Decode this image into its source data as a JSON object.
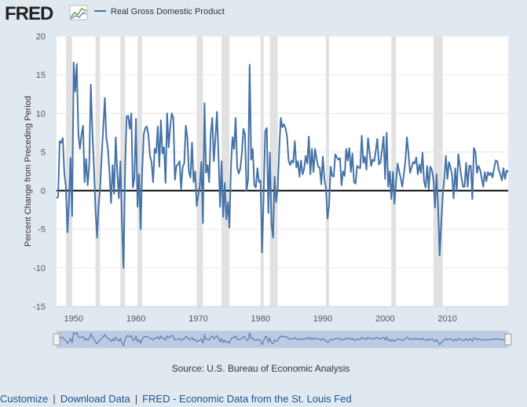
{
  "header": {
    "logo": "FRED"
  },
  "chart_data": {
    "type": "line",
    "series": [
      {
        "name": "Real Gross Domestic Product",
        "color": "#4572a7",
        "values": [
          -1.0,
          -0.8,
          6.4,
          6.2,
          6.8,
          2.3,
          0.5,
          -5.4,
          -1.4,
          4.2,
          -3.3,
          16.6,
          12.8,
          16.4,
          7.4,
          5.4,
          7.2,
          8.4,
          1.1,
          4.1,
          0.7,
          3.3,
          13.7,
          7.7,
          3.1,
          -2.4,
          -6.1,
          -1.9,
          0.4,
          4.6,
          8.1,
          12.0,
          6.8,
          5.4,
          2.3,
          -1.6,
          3.3,
          -0.4,
          6.9,
          2.4,
          -1.0,
          3.8,
          -4.2,
          -10.0,
          2.6,
          9.6,
          9.7,
          8.0,
          10.0,
          0.4,
          1.6,
          9.3,
          -2.1,
          2.1,
          -5.0,
          2.6,
          7.3,
          8.1,
          8.3,
          7.2,
          4.5,
          3.7,
          1.1,
          5.4,
          4.9,
          8.3,
          3.1,
          9.1,
          4.8,
          5.6,
          1.0,
          10.0,
          5.6,
          8.3,
          10.0,
          9.4,
          1.4,
          3.2,
          3.4,
          3.8,
          0.2,
          3.1,
          3.5,
          8.4,
          6.9,
          2.4,
          1.7,
          6.2,
          1.1,
          2.5,
          -2.0,
          -0.6,
          0.6,
          3.7,
          -4.2,
          11.3,
          2.3,
          3.3,
          1.1,
          7.4,
          9.4,
          3.8,
          6.8,
          10.2,
          4.5,
          -2.1,
          3.8,
          -3.4,
          1.0,
          -3.7,
          -1.5,
          -4.8,
          3.1,
          6.9,
          5.4,
          9.4,
          3.0,
          2.2,
          2.9,
          4.8,
          8.0,
          7.3,
          0.0,
          1.4,
          16.3,
          4.0,
          5.4,
          0.7,
          0.4,
          2.9,
          1.1,
          1.3,
          -8.0,
          -0.5,
          7.7,
          8.1,
          -2.9,
          4.9,
          -4.3,
          -6.1,
          1.8,
          -1.5,
          0.2,
          5.4,
          9.4,
          8.2,
          8.6,
          8.1,
          7.1,
          3.9,
          3.3,
          3.9,
          3.6,
          6.4,
          3.0,
          3.8,
          1.8,
          3.9,
          2.1,
          2.8,
          4.5,
          3.5,
          7.0,
          2.1,
          5.4,
          2.4,
          5.4,
          4.1,
          3.1,
          3.0,
          0.8,
          4.4,
          1.5,
          0.3,
          -3.6,
          -1.9,
          3.1,
          1.9,
          1.8,
          4.7,
          4.3,
          4.0,
          4.2,
          0.7,
          2.5,
          1.9,
          5.4,
          3.9,
          5.5,
          2.4,
          4.8,
          1.1,
          0.9,
          3.2,
          3.0,
          2.9,
          7.1,
          3.6,
          4.4,
          2.7,
          6.8,
          5.1,
          3.2,
          4.0,
          3.8,
          5.2,
          6.7,
          3.4,
          3.6,
          5.3,
          7.0,
          1.5,
          7.5,
          0.5,
          2.5,
          -1.1,
          2.4,
          -1.7,
          1.1,
          3.5,
          2.5,
          1.6,
          0.5,
          2.1,
          3.8,
          6.9,
          4.8,
          2.3,
          3.0,
          3.7,
          3.5,
          4.3,
          2.1,
          3.4,
          2.3,
          4.9,
          1.2,
          0.4,
          3.2,
          0.2,
          3.1,
          2.7,
          1.4,
          -2.2,
          2.1,
          -2.1,
          -8.4,
          -4.4,
          -0.6,
          1.5,
          4.5,
          1.5,
          3.7,
          3.0,
          2.0,
          -1.0,
          2.9,
          -0.1,
          4.7,
          3.2,
          1.7,
          0.5,
          0.5,
          3.6,
          0.5,
          3.2,
          3.2,
          -1.1,
          5.5,
          5.0,
          2.3,
          3.2,
          2.7,
          1.6,
          0.5,
          2.4,
          1.2,
          2.4,
          2.0,
          2.3,
          1.7,
          2.9,
          3.9,
          3.8,
          2.7,
          2.1,
          1.3,
          2.9,
          1.5,
          2.6,
          2.4
        ]
      }
    ],
    "x": [
      1947.25,
      1947.5,
      1947.75,
      1948,
      1948.25,
      1948.5,
      1948.75,
      1949,
      1949.25,
      1949.5,
      1949.75,
      1950,
      1950.25,
      1950.5,
      1950.75,
      1951,
      1951.25,
      1951.5,
      1951.75,
      1952,
      1952.25,
      1952.5,
      1952.75,
      1953,
      1953.25,
      1953.5,
      1953.75,
      1954,
      1954.25,
      1954.5,
      1954.75,
      1955,
      1955.25,
      1955.5,
      1955.75,
      1956,
      1956.25,
      1956.5,
      1956.75,
      1957,
      1957.25,
      1957.5,
      1957.75,
      1958,
      1958.25,
      1958.5,
      1958.75,
      1959,
      1959.25,
      1959.5,
      1959.75,
      1960,
      1960.25,
      1960.5,
      1960.75,
      1961,
      1961.25,
      1961.5,
      1961.75,
      1962,
      1962.25,
      1962.5,
      1962.75,
      1963,
      1963.25,
      1963.5,
      1963.75,
      1964,
      1964.25,
      1964.5,
      1964.75,
      1965,
      1965.25,
      1965.5,
      1965.75,
      1966,
      1966.25,
      1966.5,
      1966.75,
      1967,
      1967.25,
      1967.5,
      1967.75,
      1968,
      1968.25,
      1968.5,
      1968.75,
      1969,
      1969.25,
      1969.5,
      1969.75,
      1970,
      1970.25,
      1970.5,
      1970.75,
      1971,
      1971.25,
      1971.5,
      1971.75,
      1972,
      1972.25,
      1972.5,
      1972.75,
      1973,
      1973.25,
      1973.5,
      1973.75,
      1974,
      1974.25,
      1974.5,
      1974.75,
      1975,
      1975.25,
      1975.5,
      1975.75,
      1976,
      1976.25,
      1976.5,
      1976.75,
      1977,
      1977.25,
      1977.5,
      1977.75,
      1978,
      1978.25,
      1978.5,
      1978.75,
      1979,
      1979.25,
      1979.5,
      1979.75,
      1980,
      1980.25,
      1980.5,
      1980.75,
      1981,
      1981.25,
      1981.5,
      1981.75,
      1982,
      1982.25,
      1982.5,
      1982.75,
      1983,
      1983.25,
      1983.5,
      1983.75,
      1984,
      1984.25,
      1984.5,
      1984.75,
      1985,
      1985.25,
      1985.5,
      1985.75,
      1986,
      1986.25,
      1986.5,
      1986.75,
      1987,
      1987.25,
      1987.5,
      1987.75,
      1988,
      1988.25,
      1988.5,
      1988.75,
      1989,
      1989.25,
      1989.5,
      1989.75,
      1990,
      1990.25,
      1990.5,
      1990.75,
      1991,
      1991.25,
      1991.5,
      1991.75,
      1992,
      1992.25,
      1992.5,
      1992.75,
      1993,
      1993.25,
      1993.5,
      1993.75,
      1994,
      1994.25,
      1994.5,
      1994.75,
      1995,
      1995.25,
      1995.5,
      1995.75,
      1996,
      1996.25,
      1996.5,
      1996.75,
      1997,
      1997.25,
      1997.5,
      1997.75,
      1998,
      1998.25,
      1998.5,
      1998.75,
      1999,
      1999.25,
      1999.5,
      1999.75,
      2000,
      2000.25,
      2000.5,
      2000.75,
      2001,
      2001.25,
      2001.5,
      2001.75,
      2002,
      2002.25,
      2002.5,
      2002.75,
      2003,
      2003.25,
      2003.5,
      2003.75,
      2004,
      2004.25,
      2004.5,
      2004.75,
      2005,
      2005.25,
      2005.5,
      2005.75,
      2006,
      2006.25,
      2006.5,
      2006.75,
      2007,
      2007.25,
      2007.5,
      2007.75,
      2008,
      2008.25,
      2008.5,
      2008.75,
      2009,
      2009.25,
      2009.5,
      2009.75,
      2010,
      2010.25,
      2010.5,
      2010.75,
      2011,
      2011.25,
      2011.5,
      2011.75,
      2012,
      2012.25,
      2012.5,
      2012.75,
      2013,
      2013.25,
      2013.5,
      2013.75,
      2014,
      2014.25,
      2014.5,
      2014.75,
      2015,
      2015.25,
      2015.5,
      2015.75,
      2016,
      2016.25,
      2016.5,
      2016.75,
      2017,
      2017.25,
      2017.5,
      2017.75,
      2018,
      2018.25,
      2018.5,
      2018.75,
      2019,
      2019.25,
      2019.5,
      2019.75
    ],
    "recessions": [
      [
        1948.75,
        1949.75
      ],
      [
        1953.5,
        1954.25
      ],
      [
        1957.5,
        1958.25
      ],
      [
        1960.25,
        1961.0
      ],
      [
        1969.75,
        1970.75
      ],
      [
        1973.75,
        1975.0
      ],
      [
        1980.0,
        1980.5
      ],
      [
        1981.5,
        1982.75
      ],
      [
        1990.5,
        1991.0
      ],
      [
        2001.0,
        2001.75
      ],
      [
        2007.75,
        2009.25
      ]
    ],
    "recession_color": "#e1e1e1",
    "y_label": "Percent Change from Preceding Period",
    "xlim": [
      1947.25,
      2019.75
    ],
    "ylim": [
      -15,
      20
    ],
    "xticks": [
      1950,
      1960,
      1970,
      1980,
      1990,
      2000,
      2010
    ],
    "yticks": [
      -15,
      -10,
      -5,
      0,
      5,
      10,
      15,
      20
    ],
    "zero_line": true,
    "source": "Source: U.S. Bureau of Economic Analysis"
  },
  "links": [
    "Customize",
    "Download Data",
    "FRED - Economic Data from the St. Louis Fed"
  ]
}
